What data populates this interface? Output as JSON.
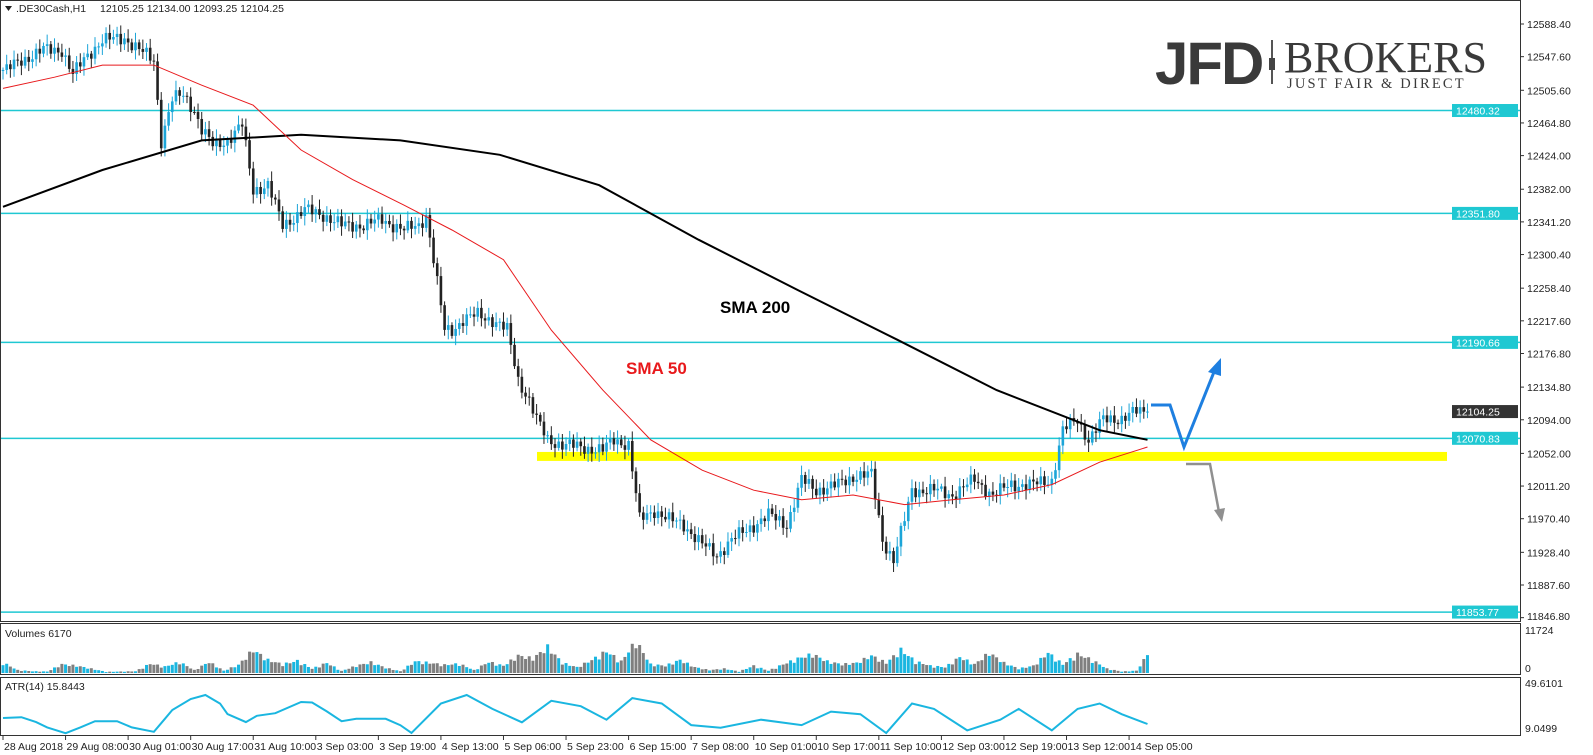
{
  "header": {
    "symbol": ".DE30Cash,H1",
    "ohlc": "12105.25 12134.00 12093.25 12104.25"
  },
  "logo": {
    "main": "JFD",
    "brand": "BROKERS",
    "tagline": "JUST FAIR & DIRECT"
  },
  "annotations": {
    "sma200": "SMA 200",
    "sma50": "SMA 50"
  },
  "colors": {
    "level_line": "#1fc8d2",
    "bull_candle": "#1ca5d8",
    "bear_candle": "#222222",
    "sma200": "#000000",
    "sma50": "#e8191c",
    "support_zone": "#ffff00",
    "bullish_arrow": "#1e7fe0",
    "bearish_arrow": "#909090",
    "volume_up": "#1ab6e0",
    "volume_down": "#7f7f7f",
    "atr": "#1ab6e0"
  },
  "chart_data": [
    {
      "type": "candlestick",
      "title": ".DE30Cash,H1",
      "x_unit": "hourly bar index",
      "ylim": [
        11846.8,
        12588.4
      ],
      "y_ticks": [
        "12588.40",
        "12547.60",
        "12505.60",
        "12464.80",
        "12424.00",
        "12382.00",
        "12341.20",
        "12300.40",
        "12258.40",
        "12217.60",
        "12176.80",
        "12134.80",
        "12094.00",
        "12052.00",
        "12011.20",
        "11970.40",
        "11928.40",
        "11887.60",
        "11846.80"
      ],
      "x_tick_labels": [
        "28 Aug 2018",
        "29 Aug 08:00",
        "30 Aug 01:00",
        "30 Aug 17:00",
        "31 Aug 10:00",
        "3 Sep 03:00",
        "3 Sep 19:00",
        "4 Sep 13:00",
        "5 Sep 06:00",
        "5 Sep 23:00",
        "6 Sep 15:00",
        "7 Sep 08:00",
        "10 Sep 01:00",
        "10 Sep 17:00",
        "11 Sep 10:00",
        "12 Sep 03:00",
        "12 Sep 19:00",
        "13 Sep 12:00",
        "14 Sep 05:00"
      ],
      "x_tick_every_bars": 17,
      "close": [
        [
          1,
          12531
        ],
        [
          5,
          12543
        ],
        [
          11,
          12556
        ],
        [
          16,
          12556
        ],
        [
          19,
          12525
        ],
        [
          23,
          12550
        ],
        [
          27,
          12568
        ],
        [
          33,
          12571
        ],
        [
          37,
          12556
        ],
        [
          41,
          12543
        ],
        [
          43,
          12443
        ],
        [
          46,
          12494
        ],
        [
          49,
          12500
        ],
        [
          52,
          12481
        ],
        [
          54,
          12456
        ],
        [
          57,
          12437
        ],
        [
          61,
          12443
        ],
        [
          65,
          12462
        ],
        [
          68,
          12381
        ],
        [
          72,
          12387
        ],
        [
          76,
          12337
        ],
        [
          82,
          12356
        ],
        [
          87,
          12350
        ],
        [
          92,
          12337
        ],
        [
          98,
          12337
        ],
        [
          103,
          12344
        ],
        [
          109,
          12331
        ],
        [
          113,
          12337
        ],
        [
          115,
          12350
        ],
        [
          117,
          12294
        ],
        [
          120,
          12206
        ],
        [
          122,
          12206
        ],
        [
          125,
          12219
        ],
        [
          129,
          12225
        ],
        [
          133,
          12219
        ],
        [
          137,
          12206
        ],
        [
          140,
          12144
        ],
        [
          143,
          12119
        ],
        [
          145,
          12094
        ],
        [
          148,
          12069
        ],
        [
          152,
          12063
        ],
        [
          158,
          12059
        ],
        [
          163,
          12056
        ],
        [
          166,
          12069
        ],
        [
          170,
          12063
        ],
        [
          173,
          11969
        ],
        [
          177,
          11981
        ],
        [
          181,
          11969
        ],
        [
          185,
          11963
        ],
        [
          190,
          11938
        ],
        [
          194,
          11925
        ],
        [
          198,
          11944
        ],
        [
          202,
          11956
        ],
        [
          208,
          11975
        ],
        [
          213,
          11963
        ],
        [
          217,
          12019
        ],
        [
          221,
          12006
        ],
        [
          227,
          12013
        ],
        [
          232,
          12025
        ],
        [
          236,
          12025
        ],
        [
          239,
          11944
        ],
        [
          242,
          11919
        ],
        [
          245,
          11969
        ],
        [
          247,
          12006
        ],
        [
          253,
          12006
        ],
        [
          258,
          12000
        ],
        [
          264,
          12019
        ],
        [
          269,
          12000
        ],
        [
          274,
          12013
        ],
        [
          280,
          12013
        ],
        [
          285,
          12019
        ],
        [
          288,
          12081
        ],
        [
          292,
          12094
        ],
        [
          295,
          12069
        ],
        [
          299,
          12094
        ],
        [
          304,
          12096
        ],
        [
          308,
          12104
        ],
        [
          311,
          12104.25
        ]
      ],
      "last_price": "12104.25",
      "sma200": [
        [
          0,
          12360
        ],
        [
          27,
          12406
        ],
        [
          54,
          12443
        ],
        [
          81,
          12450
        ],
        [
          108,
          12443
        ],
        [
          135,
          12425
        ],
        [
          162,
          12387
        ],
        [
          189,
          12319
        ],
        [
          216,
          12256
        ],
        [
          243,
          12194
        ],
        [
          270,
          12131
        ],
        [
          298,
          12081
        ],
        [
          311,
          12069
        ]
      ],
      "sma50": [
        [
          0,
          12508
        ],
        [
          14,
          12522
        ],
        [
          27,
          12537
        ],
        [
          41,
          12537
        ],
        [
          54,
          12512
        ],
        [
          68,
          12487
        ],
        [
          81,
          12431
        ],
        [
          95,
          12394
        ],
        [
          109,
          12362
        ],
        [
          122,
          12331
        ],
        [
          136,
          12294
        ],
        [
          149,
          12206
        ],
        [
          163,
          12131
        ],
        [
          176,
          12069
        ],
        [
          190,
          12031
        ],
        [
          204,
          12006
        ],
        [
          217,
          11994
        ],
        [
          231,
          12000
        ],
        [
          245,
          11988
        ],
        [
          258,
          11994
        ],
        [
          272,
          12000
        ],
        [
          285,
          12013
        ],
        [
          298,
          12041
        ],
        [
          311,
          12060
        ]
      ],
      "levels": [
        "12480.32",
        "12351.80",
        "12190.66",
        "12070.83",
        "11853.77"
      ],
      "support_zone": [
        12042.6,
        12053.8
      ]
    },
    {
      "type": "bar",
      "title": "Volumes 6170",
      "ylim": [
        0,
        11724
      ],
      "y_ticks": [
        "11724",
        "0"
      ],
      "volume": [
        [
          0,
          3600
        ],
        [
          4,
          1000
        ],
        [
          8,
          600
        ],
        [
          12,
          500
        ],
        [
          16,
          3000
        ],
        [
          20,
          2500
        ],
        [
          24,
          1500
        ],
        [
          28,
          400
        ],
        [
          32,
          500
        ],
        [
          36,
          600
        ],
        [
          40,
          3200
        ],
        [
          44,
          2200
        ],
        [
          48,
          3800
        ],
        [
          52,
          1000
        ],
        [
          56,
          3800
        ],
        [
          60,
          800
        ],
        [
          64,
          2800
        ],
        [
          68,
          8000
        ],
        [
          72,
          4500
        ],
        [
          76,
          3000
        ],
        [
          80,
          4200
        ],
        [
          84,
          1500
        ],
        [
          88,
          3500
        ],
        [
          92,
          700
        ],
        [
          96,
          2500
        ],
        [
          100,
          3700
        ],
        [
          104,
          1800
        ],
        [
          108,
          600
        ],
        [
          112,
          4000
        ],
        [
          116,
          3500
        ],
        [
          120,
          2800
        ],
        [
          124,
          3200
        ],
        [
          128,
          1000
        ],
        [
          132,
          3800
        ],
        [
          136,
          2500
        ],
        [
          140,
          6000
        ],
        [
          144,
          5000
        ],
        [
          148,
          9000
        ],
        [
          152,
          3500
        ],
        [
          156,
          2000
        ],
        [
          160,
          4500
        ],
        [
          164,
          7500
        ],
        [
          168,
          4000
        ],
        [
          172,
          11000
        ],
        [
          176,
          3000
        ],
        [
          180,
          2500
        ],
        [
          184,
          4500
        ],
        [
          188,
          2000
        ],
        [
          192,
          1000
        ],
        [
          196,
          1500
        ],
        [
          200,
          500
        ],
        [
          204,
          2500
        ],
        [
          208,
          800
        ],
        [
          212,
          3000
        ],
        [
          216,
          5000
        ],
        [
          220,
          6500
        ],
        [
          224,
          4000
        ],
        [
          228,
          3000
        ],
        [
          232,
          3500
        ],
        [
          236,
          6000
        ],
        [
          240,
          3500
        ],
        [
          244,
          8000
        ],
        [
          248,
          4000
        ],
        [
          252,
          2500
        ],
        [
          256,
          2000
        ],
        [
          260,
          5500
        ],
        [
          264,
          3000
        ],
        [
          268,
          7000
        ],
        [
          272,
          3500
        ],
        [
          276,
          1500
        ],
        [
          280,
          2500
        ],
        [
          284,
          7000
        ],
        [
          288,
          3000
        ],
        [
          292,
          6500
        ],
        [
          296,
          4500
        ],
        [
          300,
          1500
        ],
        [
          304,
          500
        ],
        [
          308,
          800
        ],
        [
          311,
          6170
        ]
      ]
    },
    {
      "type": "line",
      "title": "ATR(14) 15.8443",
      "ylim": [
        9.0499,
        49.6101
      ],
      "y_ticks": [
        "49.6101",
        "9.0499"
      ],
      "atr": [
        [
          0,
          22.6
        ],
        [
          5,
          23.5
        ],
        [
          9,
          18
        ],
        [
          12,
          12
        ],
        [
          17,
          5.4
        ],
        [
          21,
          12
        ],
        [
          25,
          19
        ],
        [
          31,
          19
        ],
        [
          35,
          12
        ],
        [
          41,
          7
        ],
        [
          44,
          21.7
        ],
        [
          46,
          31.6
        ],
        [
          51,
          44
        ],
        [
          55,
          48.5
        ],
        [
          59,
          38.8
        ],
        [
          61,
          27
        ],
        [
          66,
          18
        ],
        [
          69,
          25
        ],
        [
          74,
          28
        ],
        [
          81,
          40.6
        ],
        [
          84,
          40
        ],
        [
          88,
          30
        ],
        [
          92,
          19
        ],
        [
          96,
          21.7
        ],
        [
          104,
          21.7
        ],
        [
          108,
          14.5
        ],
        [
          111,
          5.7
        ],
        [
          119,
          38.9
        ],
        [
          126,
          48.5
        ],
        [
          133,
          32.8
        ],
        [
          141,
          17.7
        ],
        [
          149,
          41.9
        ],
        [
          157,
          35.9
        ],
        [
          164,
          20.7
        ],
        [
          171,
          45
        ],
        [
          179,
          38.9
        ],
        [
          187,
          14.6
        ],
        [
          195,
          11.6
        ],
        [
          206,
          20.7
        ],
        [
          217,
          14.6
        ],
        [
          225,
          29.8
        ],
        [
          233,
          26.8
        ],
        [
          240,
          5.7
        ],
        [
          247,
          38.9
        ],
        [
          253,
          32.8
        ],
        [
          262,
          8.6
        ],
        [
          271,
          20.7
        ],
        [
          276,
          32.8
        ],
        [
          285,
          8.6
        ],
        [
          292,
          32.8
        ],
        [
          298,
          38.9
        ],
        [
          304,
          26.8
        ],
        [
          311,
          15.8
        ]
      ]
    }
  ]
}
